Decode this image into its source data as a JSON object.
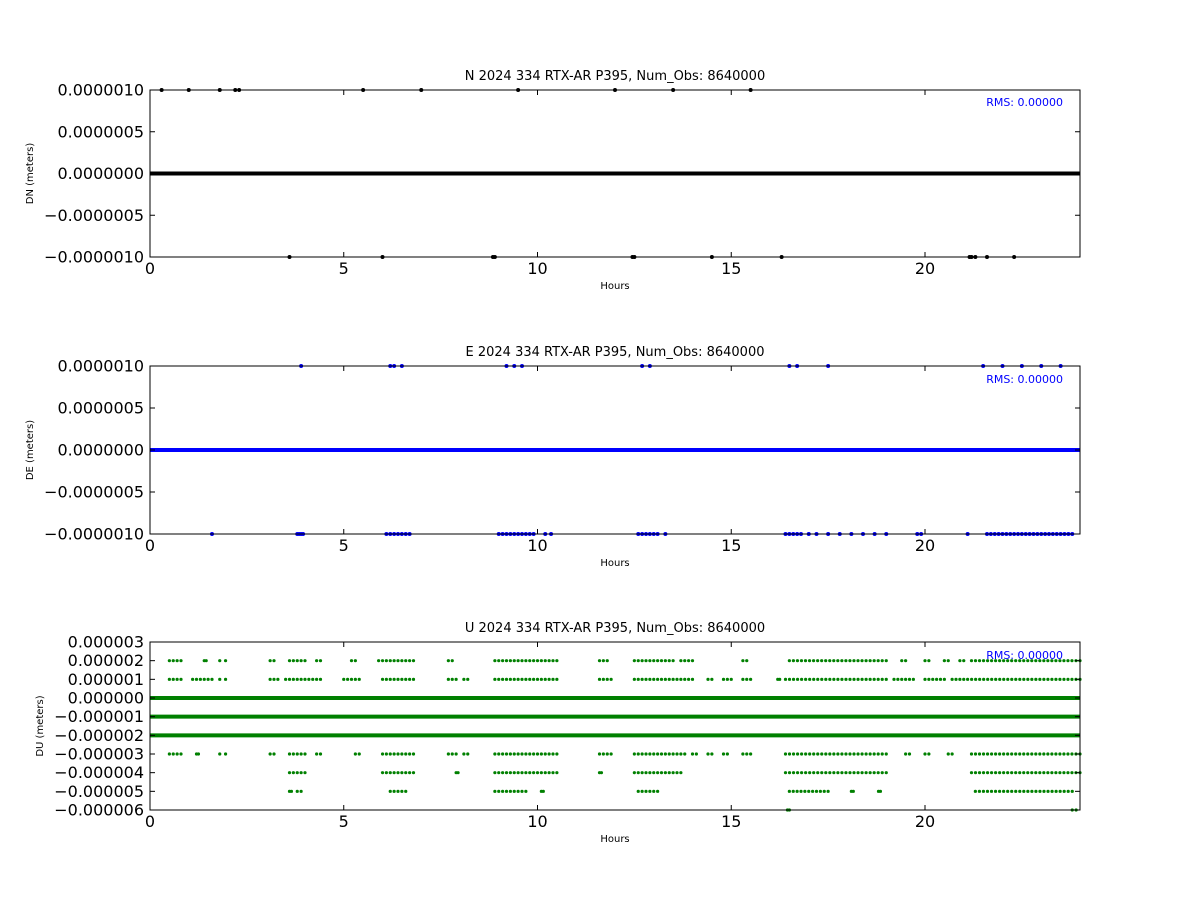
{
  "chart_data": [
    {
      "type": "scatter",
      "title": "N 2024 334 RTX-AR  P395, Num_Obs: 8640000",
      "xlabel": "Hours",
      "ylabel": "DN (meters)",
      "xlim": [
        0,
        24
      ],
      "ylim": [
        -1e-06,
        1e-06
      ],
      "xticks": [
        0,
        5,
        10,
        15,
        20
      ],
      "xtick_labels": [
        "0",
        "5",
        "10",
        "15",
        "20"
      ],
      "yticks": [
        1e-06,
        5e-07,
        0,
        -5e-07,
        -1e-06
      ],
      "ytick_labels": [
        "0.0000010",
        "0.0000005",
        "0.0000000",
        "−0.0000005",
        "−0.0000010"
      ],
      "annotation": "RMS:  0.00000",
      "annotation_position": "top-right",
      "color": "#000000",
      "annotation_color": "#0000ff",
      "series": [
        {
          "line_levels": [
            0
          ],
          "sparse_points": [
            {
              "y": -1e-06,
              "x": [
                3.6,
                6.0,
                8.85,
                8.9,
                12.45,
                12.5,
                14.5,
                16.3,
                21.15,
                21.2,
                21.3,
                21.6,
                22.3
              ]
            },
            {
              "y": 1e-06,
              "x": [
                0.3,
                1.0,
                1.8,
                2.2,
                2.3,
                5.5,
                7.0,
                9.5,
                12.0,
                13.5,
                15.5
              ]
            }
          ]
        }
      ]
    },
    {
      "type": "scatter",
      "title": "E 2024 334 RTX-AR  P395, Num_Obs: 8640000",
      "xlabel": "Hours",
      "ylabel": "DE (meters)",
      "xlim": [
        0,
        24
      ],
      "ylim": [
        -1e-06,
        1e-06
      ],
      "xticks": [
        0,
        5,
        10,
        15,
        20
      ],
      "xtick_labels": [
        "0",
        "5",
        "10",
        "15",
        "20"
      ],
      "yticks": [
        1e-06,
        5e-07,
        0,
        -5e-07,
        -1e-06
      ],
      "ytick_labels": [
        "0.0000010",
        "0.0000005",
        "0.0000000",
        "−0.0000005",
        "−0.0000010"
      ],
      "annotation": "RMS:  0.00000",
      "annotation_position": "top-right",
      "color": "#0000ff",
      "annotation_color": "#0000ff",
      "series": [
        {
          "line_levels": [
            0
          ],
          "sparse_points": [
            {
              "y": -1e-06,
              "x": [
                1.6,
                3.8,
                3.85,
                3.9,
                3.95,
                6.1,
                6.2,
                6.3,
                6.4,
                6.5,
                6.6,
                6.7,
                9.0,
                9.1,
                9.2,
                9.3,
                9.4,
                9.5,
                9.6,
                9.7,
                9.8,
                9.9,
                10.2,
                10.35,
                12.6,
                12.7,
                12.8,
                12.9,
                13.0,
                13.1,
                13.3,
                16.4,
                16.5,
                16.6,
                16.7,
                16.8,
                17.0,
                17.2,
                17.5,
                17.8,
                18.1,
                18.4,
                18.7,
                19.0,
                19.8,
                19.9,
                21.1,
                21.6,
                21.7,
                21.8,
                21.9,
                22.0,
                22.1,
                22.2,
                22.3,
                22.4,
                22.5,
                22.6,
                22.7,
                22.8,
                22.9,
                23.0,
                23.1,
                23.2,
                23.3,
                23.4,
                23.5,
                23.6,
                23.7,
                23.8
              ]
            },
            {
              "y": 1e-06,
              "x": [
                3.9,
                6.2,
                6.3,
                6.5,
                9.2,
                9.4,
                9.6,
                12.7,
                12.9,
                16.5,
                16.7,
                17.5,
                21.5,
                22.0,
                22.5,
                23.0,
                23.5
              ]
            }
          ]
        }
      ]
    },
    {
      "type": "scatter",
      "title": "U 2024 334 RTX-AR  P395, Num_Obs: 8640000",
      "xlabel": "Hours",
      "ylabel": "DU (meters)",
      "xlim": [
        0,
        24
      ],
      "ylim": [
        -6e-06,
        3e-06
      ],
      "xticks": [
        0,
        5,
        10,
        15,
        20
      ],
      "xtick_labels": [
        "0",
        "5",
        "10",
        "15",
        "20"
      ],
      "yticks": [
        3e-06,
        2e-06,
        1e-06,
        0,
        -1e-06,
        -2e-06,
        -3e-06,
        -4e-06,
        -5e-06,
        -6e-06
      ],
      "ytick_labels": [
        "0.000003",
        "0.000002",
        "0.000001",
        "0.000000",
        "−0.000001",
        "−0.000002",
        "−0.000003",
        "−0.000004",
        "−0.000005",
        "−0.000006"
      ],
      "annotation": "RMS:  0.00000",
      "annotation_position": "top-right",
      "color": "#008000",
      "annotation_color": "#0000ff",
      "series": [
        {
          "line_levels": [
            0,
            -1e-06,
            -2e-06
          ],
          "clusters": [
            {
              "y": 1e-06,
              "ranges": [
                [
                  0.5,
                  0.8
                ],
                [
                  1.1,
                  1.4
                ],
                [
                  1.5,
                  1.6
                ],
                [
                  1.8,
                  1.95
                ],
                [
                  3.1,
                  3.3
                ],
                [
                  3.5,
                  4.4
                ],
                [
                  5.0,
                  5.4
                ],
                [
                  6.0,
                  6.8
                ],
                [
                  7.7,
                  7.9
                ],
                [
                  8.1,
                  8.2
                ],
                [
                  8.9,
                  10.5
                ],
                [
                  11.6,
                  11.9
                ],
                [
                  12.5,
                  14.0
                ],
                [
                  14.4,
                  14.5
                ],
                [
                  14.8,
                  15.0
                ],
                [
                  15.3,
                  15.5
                ],
                [
                  16.2,
                  16.25
                ],
                [
                  16.4,
                  19.0
                ],
                [
                  19.2,
                  19.7
                ],
                [
                  20.0,
                  20.5
                ],
                [
                  20.7,
                  21.0
                ],
                [
                  21.1,
                  24.0
                ]
              ]
            },
            {
              "y": 2e-06,
              "ranges": [
                [
                  0.5,
                  0.8
                ],
                [
                  1.4,
                  1.45
                ],
                [
                  1.8,
                  1.95
                ],
                [
                  3.1,
                  3.2
                ],
                [
                  3.6,
                  4.0
                ],
                [
                  4.3,
                  4.4
                ],
                [
                  5.2,
                  5.3
                ],
                [
                  5.9,
                  6.8
                ],
                [
                  7.7,
                  7.8
                ],
                [
                  8.9,
                  10.5
                ],
                [
                  11.6,
                  11.8
                ],
                [
                  12.5,
                  13.5
                ],
                [
                  13.7,
                  14.0
                ],
                [
                  15.3,
                  15.4
                ],
                [
                  16.5,
                  19.0
                ],
                [
                  19.4,
                  19.5
                ],
                [
                  20.0,
                  20.1
                ],
                [
                  20.5,
                  20.6
                ],
                [
                  20.9,
                  21.0
                ],
                [
                  21.2,
                  24.0
                ]
              ]
            },
            {
              "y": -3e-06,
              "ranges": [
                [
                  0.5,
                  0.8
                ],
                [
                  1.2,
                  1.25
                ],
                [
                  1.8,
                  1.95
                ],
                [
                  3.1,
                  3.2
                ],
                [
                  3.6,
                  4.0
                ],
                [
                  4.3,
                  4.4
                ],
                [
                  5.3,
                  5.4
                ],
                [
                  6.0,
                  6.8
                ],
                [
                  7.7,
                  7.9
                ],
                [
                  8.1,
                  8.2
                ],
                [
                  8.9,
                  10.5
                ],
                [
                  11.6,
                  11.9
                ],
                [
                  12.5,
                  13.8
                ],
                [
                  14.0,
                  14.1
                ],
                [
                  14.4,
                  14.5
                ],
                [
                  14.8,
                  14.9
                ],
                [
                  15.3,
                  15.5
                ],
                [
                  16.4,
                  19.0
                ],
                [
                  19.5,
                  19.6
                ],
                [
                  20.0,
                  20.1
                ],
                [
                  20.6,
                  20.7
                ],
                [
                  21.2,
                  24.0
                ]
              ]
            },
            {
              "y": -4e-06,
              "ranges": [
                [
                  3.6,
                  4.0
                ],
                [
                  6.0,
                  6.8
                ],
                [
                  7.9,
                  7.95
                ],
                [
                  8.9,
                  10.5
                ],
                [
                  11.6,
                  11.65
                ],
                [
                  12.5,
                  13.7
                ],
                [
                  16.4,
                  19.0
                ],
                [
                  21.2,
                  24.0
                ]
              ]
            },
            {
              "y": -5e-06,
              "ranges": [
                [
                  3.6,
                  3.65
                ],
                [
                  3.8,
                  3.9
                ],
                [
                  6.2,
                  6.6
                ],
                [
                  8.9,
                  9.7
                ],
                [
                  10.1,
                  10.15
                ],
                [
                  12.6,
                  13.1
                ],
                [
                  16.5,
                  17.5
                ],
                [
                  18.1,
                  18.15
                ],
                [
                  18.8,
                  18.85
                ],
                [
                  21.3,
                  23.8
                ]
              ]
            },
            {
              "y": -6e-06,
              "ranges": [
                [
                  16.45,
                  16.5
                ],
                [
                  23.8,
                  23.9
                ]
              ]
            }
          ]
        }
      ]
    }
  ]
}
